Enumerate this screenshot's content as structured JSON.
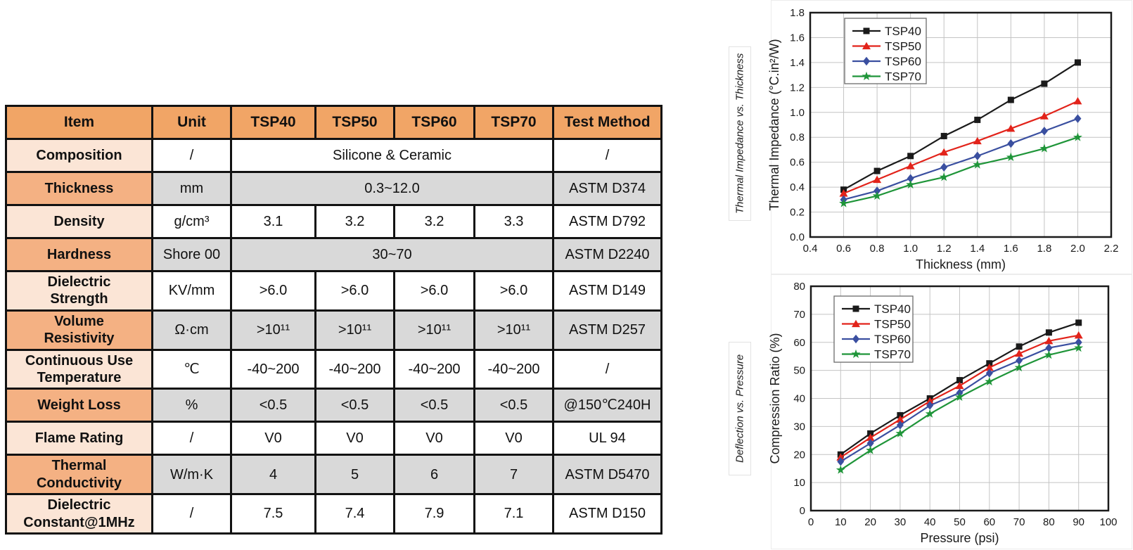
{
  "table": {
    "columns": [
      "Item",
      "Unit",
      "TSP40",
      "TSP50",
      "TSP60",
      "TSP70",
      "Test Method"
    ],
    "rows": [
      {
        "item": "Composition",
        "unit": "/",
        "span": "Silicone & Ceramic",
        "method": "/",
        "shaded": false
      },
      {
        "item": "Thickness",
        "unit": "mm",
        "span": "0.3~12.0",
        "method": "ASTM D374",
        "shaded": true
      },
      {
        "item": "Density",
        "unit": "g/cm³",
        "values": [
          "3.1",
          "3.2",
          "3.2",
          "3.3"
        ],
        "method": "ASTM D792",
        "shaded": false
      },
      {
        "item": "Hardness",
        "unit": "Shore 00",
        "span": "30~70",
        "method": "ASTM D2240",
        "shaded": true
      },
      {
        "item": "Dielectric\nStrength",
        "unit": "KV/mm",
        "values": [
          ">6.0",
          ">6.0",
          ">6.0",
          ">6.0"
        ],
        "method": "ASTM D149",
        "shaded": false
      },
      {
        "item": "Volume\nResistivity",
        "unit": "Ω·cm",
        "values": [
          ">10¹¹",
          ">10¹¹",
          ">10¹¹",
          ">10¹¹"
        ],
        "method": "ASTM D257",
        "shaded": true
      },
      {
        "item": "Continuous Use\nTemperature",
        "unit": "℃",
        "values": [
          "-40~200",
          "-40~200",
          "-40~200",
          "-40~200"
        ],
        "method": "/",
        "shaded": false
      },
      {
        "item": "Weight Loss",
        "unit": "%",
        "values": [
          "<0.5",
          "<0.5",
          "<0.5",
          "<0.5"
        ],
        "method": "@150℃240H",
        "shaded": true
      },
      {
        "item": "Flame Rating",
        "unit": "/",
        "values": [
          "V0",
          "V0",
          "V0",
          "V0"
        ],
        "method": "UL 94",
        "shaded": false
      },
      {
        "item": "Thermal\nConductivity",
        "unit": "W/m·K",
        "values": [
          "4",
          "5",
          "6",
          "7"
        ],
        "method": "ASTM D5470",
        "shaded": true
      },
      {
        "item": "Dielectric\nConstant@1MHz",
        "unit": "/",
        "values": [
          "7.5",
          "7.4",
          "7.9",
          "7.1"
        ],
        "method": "ASTM D150",
        "shaded": false
      }
    ],
    "colors": {
      "header": "#F1A566",
      "item_shaded": "#F4B183",
      "item_plain": "#FBE5D6",
      "cell_shaded": "#D9D9D9",
      "cell_plain": "#ffffff",
      "border": "#121212"
    }
  },
  "side_labels": [
    {
      "text": "Thermal Impedance vs. Thickness"
    },
    {
      "text": "Deflection vs. Pressure"
    }
  ],
  "chart_data": [
    {
      "type": "line",
      "title": "",
      "xlabel": "Thickness (mm)",
      "ylabel": "Thermal Impedance (°C.in²/W)",
      "xlim": [
        0.4,
        2.2
      ],
      "ylim": [
        0.0,
        1.8
      ],
      "xticks": [
        "0.4",
        "0.6",
        "0.8",
        "1.0",
        "1.2",
        "1.4",
        "1.6",
        "1.8",
        "2.0",
        "2.2"
      ],
      "yticks": [
        "0.0",
        "0.2",
        "0.4",
        "0.6",
        "0.8",
        "1.0",
        "1.2",
        "1.4",
        "1.6",
        "1.8"
      ],
      "grid": true,
      "legend_position": "top-left",
      "x": [
        0.6,
        0.8,
        1.0,
        1.2,
        1.4,
        1.6,
        1.8,
        2.0
      ],
      "series": [
        {
          "name": "TSP40",
          "color": "#1a1a1a",
          "marker": "square",
          "values": [
            0.38,
            0.53,
            0.65,
            0.81,
            0.94,
            1.1,
            1.23,
            1.4
          ]
        },
        {
          "name": "TSP50",
          "color": "#e2231a",
          "marker": "triangle",
          "values": [
            0.35,
            0.46,
            0.57,
            0.68,
            0.77,
            0.87,
            0.97,
            1.09
          ]
        },
        {
          "name": "TSP60",
          "color": "#3a4fa0",
          "marker": "diamond",
          "values": [
            0.3,
            0.37,
            0.47,
            0.56,
            0.65,
            0.75,
            0.85,
            0.95
          ]
        },
        {
          "name": "TSP70",
          "color": "#1f9539",
          "marker": "star",
          "values": [
            0.27,
            0.33,
            0.42,
            0.48,
            0.58,
            0.64,
            0.71,
            0.8
          ]
        }
      ]
    },
    {
      "type": "line",
      "title": "",
      "xlabel": "Pressure (psi)",
      "ylabel": "Compression Ratio (%)",
      "xlim": [
        0,
        100
      ],
      "ylim": [
        0,
        80
      ],
      "xticks": [
        "0",
        "10",
        "20",
        "30",
        "40",
        "50",
        "60",
        "70",
        "80",
        "90",
        "100"
      ],
      "yticks": [
        "0",
        "10",
        "20",
        "30",
        "40",
        "50",
        "60",
        "70",
        "80"
      ],
      "grid": true,
      "legend_position": "top-left",
      "x": [
        10,
        20,
        30,
        40,
        50,
        60,
        70,
        80,
        90
      ],
      "series": [
        {
          "name": "TSP40",
          "color": "#1a1a1a",
          "marker": "square",
          "values": [
            20.0,
            27.5,
            34.0,
            40.0,
            46.5,
            52.5,
            58.5,
            63.5,
            67.0
          ]
        },
        {
          "name": "TSP50",
          "color": "#e2231a",
          "marker": "triangle",
          "values": [
            19.0,
            26.0,
            32.5,
            39.0,
            44.5,
            51.0,
            56.0,
            60.5,
            62.5
          ]
        },
        {
          "name": "TSP60",
          "color": "#3a4fa0",
          "marker": "diamond",
          "values": [
            17.5,
            24.0,
            30.5,
            37.5,
            42.0,
            49.0,
            53.5,
            58.0,
            60.0
          ]
        },
        {
          "name": "TSP70",
          "color": "#1f9539",
          "marker": "star",
          "values": [
            14.5,
            21.5,
            27.5,
            34.5,
            40.5,
            46.0,
            51.0,
            55.5,
            58.0
          ]
        }
      ]
    }
  ]
}
